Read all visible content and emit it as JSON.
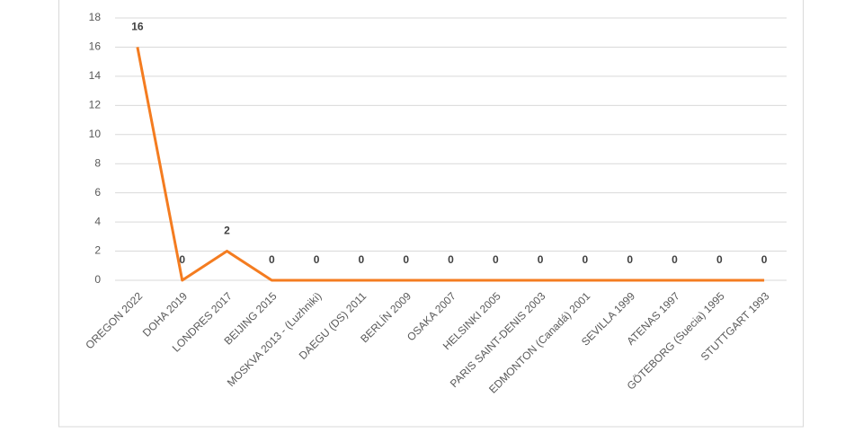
{
  "chart_data": {
    "type": "line",
    "categories": [
      "OREGON 2022",
      "DOHA 2019",
      "LONDRES 2017",
      "BEIJING 2015",
      "MOSKVA 2013 - (Luzhniki)",
      "DAEGU (DS) 2011",
      "BERLÍN 2009",
      "OSAKA 2007",
      "HELSINKI 2005",
      "PARIS SAINT-DENIS 2003",
      "EDMONTON (Canadá) 2001",
      "SEVILLA 1999",
      "ATENAS 1997",
      "GÖTEBORG (Suecia) 1995",
      "STUTTGART 1993"
    ],
    "series": [
      {
        "color": "#f47c20",
        "values": [
          16,
          0,
          2,
          0,
          0,
          0,
          0,
          0,
          0,
          0,
          0,
          0,
          0,
          0,
          0
        ]
      }
    ],
    "ylim": [
      0,
      18
    ],
    "yticks": [
      0,
      2,
      4,
      6,
      8,
      10,
      12,
      14,
      16,
      18
    ],
    "grid": true
  }
}
